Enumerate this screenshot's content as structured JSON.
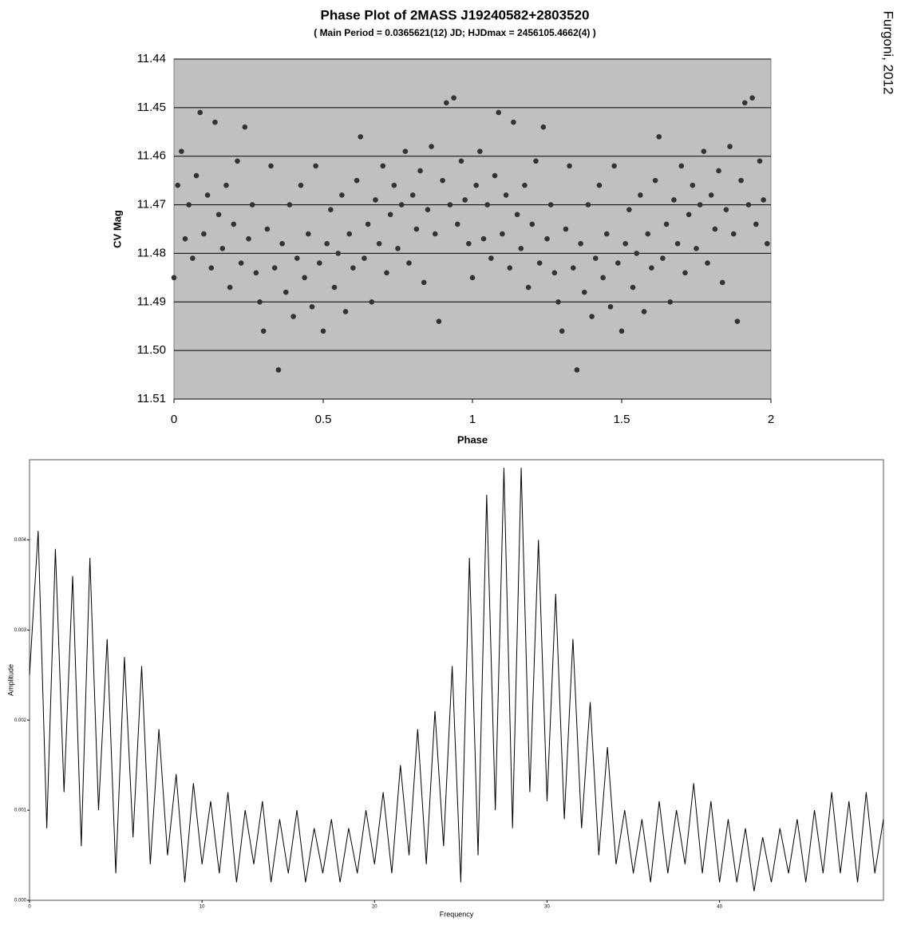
{
  "credit": "Furgoni, 2012",
  "chart_data": [
    {
      "type": "scatter",
      "title": "Phase Plot of 2MASS J19240582+2803520",
      "subtitle": "( Main Period = 0.0365621(12) JD; HJDmax = 2456105.4662(4) )",
      "x_label": "Phase",
      "y_label": "CV Mag",
      "xlim": [
        0,
        2
      ],
      "xticks": [
        0,
        0.5,
        1,
        1.5,
        2
      ],
      "ylim": [
        11.44,
        11.51
      ],
      "y_inverted": true,
      "yticks": [
        11.44,
        11.45,
        11.46,
        11.47,
        11.48,
        11.49,
        {
          "value": 11.5,
          "label": "11.50"
        },
        11.51
      ],
      "grid": true,
      "color": "#333333",
      "background": "#c0c0c0",
      "x": [
        0,
        0.0125,
        0.025,
        0.0375,
        0.05,
        0.0625,
        0.075,
        0.0875,
        0.1,
        0.1125,
        0.125,
        0.1375,
        0.15,
        0.1625,
        0.175,
        0.1875,
        0.2,
        0.2125,
        0.225,
        0.2375,
        0.25,
        0.2625,
        0.275,
        0.2875,
        0.3,
        0.3125,
        0.325,
        0.3375,
        0.35,
        0.3625,
        0.375,
        0.3875,
        0.4,
        0.4125,
        0.425,
        0.4375,
        0.45,
        0.4625,
        0.475,
        0.4875,
        0.5,
        0.5125,
        0.525,
        0.5375,
        0.55,
        0.5625,
        0.575,
        0.5875,
        0.6,
        0.6125,
        0.625,
        0.6375,
        0.65,
        0.6625,
        0.675,
        0.6875,
        0.7,
        0.7125,
        0.725,
        0.7375,
        0.75,
        0.7625,
        0.775,
        0.7875,
        0.8,
        0.8125,
        0.825,
        0.8375,
        0.85,
        0.8625,
        0.875,
        0.8875,
        0.9,
        0.9125,
        0.925,
        0.9375,
        0.95,
        0.9625,
        0.975,
        0.9875,
        1,
        1.0125,
        1.025,
        1.0375,
        1.05,
        1.0625,
        1.075,
        1.0875,
        1.1,
        1.1125,
        1.125,
        1.1375,
        1.15,
        1.1625,
        1.175,
        1.1875,
        1.2,
        1.2125,
        1.225,
        1.2375,
        1.25,
        1.2625,
        1.275,
        1.2875,
        1.3,
        1.3125,
        1.325,
        1.3375,
        1.35,
        1.3625,
        1.375,
        1.3875,
        1.4,
        1.4125,
        1.425,
        1.4375,
        1.45,
        1.4625,
        1.475,
        1.4875,
        1.5,
        1.5125,
        1.525,
        1.5375,
        1.55,
        1.5625,
        1.575,
        1.5875,
        1.6,
        1.6125,
        1.625,
        1.6375,
        1.65,
        1.6625,
        1.675,
        1.6875,
        1.7,
        1.7125,
        1.725,
        1.7375,
        1.75,
        1.7625,
        1.775,
        1.7875,
        1.8,
        1.8125,
        1.825,
        1.8375,
        1.85,
        1.8625,
        1.875,
        1.8875,
        1.9,
        1.9125,
        1.925,
        1.9375,
        1.95,
        1.9625,
        1.975,
        1.9875
      ],
      "values": [
        11.485,
        11.466,
        11.459,
        11.477,
        11.47,
        11.481,
        11.464,
        11.451,
        11.476,
        11.468,
        11.483,
        11.453,
        11.472,
        11.479,
        11.466,
        11.487,
        11.474,
        11.461,
        11.482,
        11.454,
        11.477,
        11.47,
        11.484,
        11.49,
        11.496,
        11.475,
        11.462,
        11.483,
        11.504,
        11.478,
        11.488,
        11.47,
        11.493,
        11.481,
        11.466,
        11.485,
        11.476,
        11.491,
        11.462,
        11.482,
        11.496,
        11.478,
        11.471,
        11.487,
        11.48,
        11.468,
        11.492,
        11.476,
        11.483,
        11.465,
        11.456,
        11.481,
        11.474,
        11.49,
        11.469,
        11.478,
        11.462,
        11.484,
        11.472,
        11.466,
        11.479,
        11.47,
        11.459,
        11.482,
        11.468,
        11.475,
        11.463,
        11.486,
        11.471,
        11.458,
        11.476,
        11.494,
        11.465,
        11.449,
        11.47,
        11.448,
        11.474,
        11.461,
        11.469,
        11.478,
        11.485,
        11.466,
        11.459,
        11.477,
        11.47,
        11.481,
        11.464,
        11.451,
        11.476,
        11.468,
        11.483,
        11.453,
        11.472,
        11.479,
        11.466,
        11.487,
        11.474,
        11.461,
        11.482,
        11.454,
        11.477,
        11.47,
        11.484,
        11.49,
        11.496,
        11.475,
        11.462,
        11.483,
        11.504,
        11.478,
        11.488,
        11.47,
        11.493,
        11.481,
        11.466,
        11.485,
        11.476,
        11.491,
        11.462,
        11.482,
        11.496,
        11.478,
        11.471,
        11.487,
        11.48,
        11.468,
        11.492,
        11.476,
        11.483,
        11.465,
        11.456,
        11.481,
        11.474,
        11.49,
        11.469,
        11.478,
        11.462,
        11.484,
        11.472,
        11.466,
        11.479,
        11.47,
        11.459,
        11.482,
        11.468,
        11.475,
        11.463,
        11.486,
        11.471,
        11.458,
        11.476,
        11.494,
        11.465,
        11.449,
        11.47,
        11.448,
        11.474,
        11.461,
        11.469,
        11.478
      ]
    },
    {
      "type": "line",
      "x_label": "Frequency",
      "y_label": "Amplitude",
      "xlim": [
        0,
        49.5
      ],
      "xticks": [
        0,
        10,
        20,
        30,
        40
      ],
      "ylim": [
        0,
        0.00489
      ],
      "yticks": [
        {
          "value": 0,
          "label": "0.000"
        },
        {
          "value": 0.001,
          "label": "0.001"
        },
        {
          "value": 0.002,
          "label": "0.002"
        },
        {
          "value": 0.003,
          "label": "0.003"
        },
        {
          "value": 0.004,
          "label": "0.004"
        }
      ],
      "grid": false,
      "color": "#000000",
      "background": "#ffffff",
      "x": [
        0,
        0.5,
        1,
        1.5,
        2,
        2.5,
        3,
        3.5,
        4,
        4.5,
        5,
        5.5,
        6,
        6.5,
        7,
        7.5,
        8,
        8.5,
        9,
        9.5,
        10,
        10.5,
        11,
        11.5,
        12,
        12.5,
        13,
        13.5,
        14,
        14.5,
        15,
        15.5,
        16,
        16.5,
        17,
        17.5,
        18,
        18.5,
        19,
        19.5,
        20,
        20.5,
        21,
        21.5,
        22,
        22.5,
        23,
        23.5,
        24,
        24.5,
        25,
        25.5,
        26,
        26.5,
        27,
        27.5,
        28,
        28.5,
        29,
        29.5,
        30,
        30.5,
        31,
        31.5,
        32,
        32.5,
        33,
        33.5,
        34,
        34.5,
        35,
        35.5,
        36,
        36.5,
        37,
        37.5,
        38,
        38.5,
        39,
        39.5,
        40,
        40.5,
        41,
        41.5,
        42,
        42.5,
        43,
        43.5,
        44,
        44.5,
        45,
        45.5,
        46,
        46.5,
        47,
        47.5,
        48,
        48.5,
        49,
        49.5
      ],
      "values": [
        0.0025,
        0.0041,
        0.0008,
        0.0039,
        0.0012,
        0.0036,
        0.0006,
        0.0038,
        0.001,
        0.0029,
        0.0003,
        0.0027,
        0.0007,
        0.0026,
        0.0004,
        0.0019,
        0.0005,
        0.0014,
        0.0002,
        0.0013,
        0.0004,
        0.0011,
        0.0003,
        0.0012,
        0.0002,
        0.001,
        0.0004,
        0.0011,
        0.0002,
        0.0009,
        0.0003,
        0.001,
        0.0002,
        0.0008,
        0.0003,
        0.0009,
        0.0002,
        0.0008,
        0.0003,
        0.001,
        0.0004,
        0.0012,
        0.0003,
        0.0015,
        0.0005,
        0.0019,
        0.0004,
        0.0021,
        0.0006,
        0.0026,
        0.0002,
        0.0038,
        0.0005,
        0.0045,
        0.001,
        0.0048,
        0.0008,
        0.0048,
        0.0012,
        0.004,
        0.0011,
        0.0034,
        0.0009,
        0.0029,
        0.0008,
        0.0022,
        0.0005,
        0.0017,
        0.0004,
        0.001,
        0.0003,
        0.0009,
        0.0002,
        0.0011,
        0.0003,
        0.001,
        0.0004,
        0.0013,
        0.0003,
        0.0011,
        0.0002,
        0.0009,
        0.0002,
        0.0008,
        0.0001,
        0.0007,
        0.0002,
        0.0008,
        0.0003,
        0.0009,
        0.0002,
        0.001,
        0.0003,
        0.0012,
        0.0003,
        0.0011,
        0.0002,
        0.0012,
        0.0003,
        0.0009
      ]
    }
  ]
}
